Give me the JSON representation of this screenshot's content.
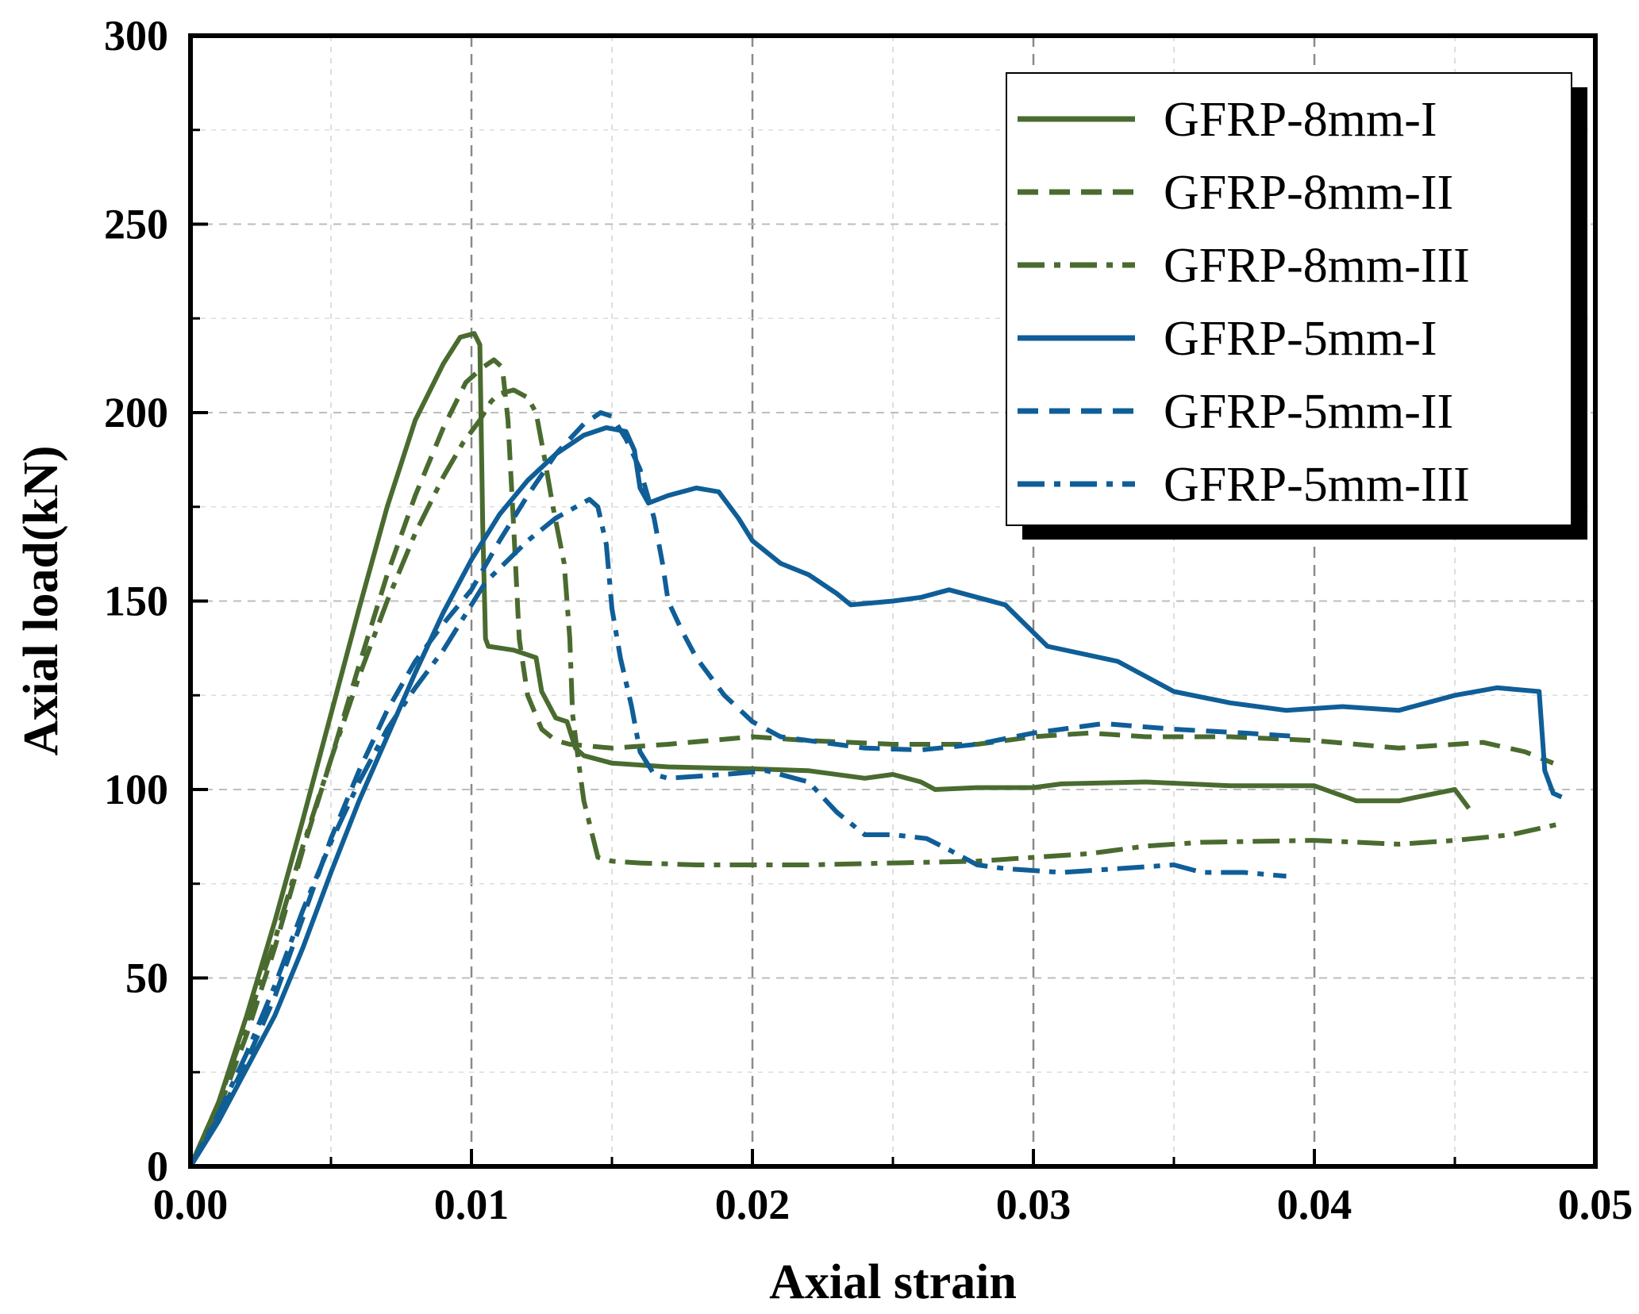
{
  "chart_data": {
    "type": "line",
    "title": "",
    "xlabel": "Axial strain",
    "ylabel": "Axial load(kN)",
    "xlim": [
      0,
      0.05
    ],
    "ylim": [
      0,
      300
    ],
    "x_ticks": [
      0,
      0.01,
      0.02,
      0.03,
      0.04,
      0.05
    ],
    "x_tick_labels": [
      "0.00",
      "0.01",
      "0.02",
      "0.03",
      "0.04",
      "0.05"
    ],
    "y_ticks": [
      0,
      50,
      100,
      150,
      200,
      250,
      300
    ],
    "y_tick_labels": [
      "0",
      "50",
      "100",
      "150",
      "200",
      "250",
      "300"
    ],
    "grid": true,
    "legend_position": "top-right",
    "series": [
      {
        "name": "GFRP-8mm-I",
        "color": "#4a6b2f",
        "dash": "solid",
        "points": [
          [
            0,
            0
          ],
          [
            0.001,
            17
          ],
          [
            0.002,
            40
          ],
          [
            0.003,
            65
          ],
          [
            0.004,
            92
          ],
          [
            0.005,
            120
          ],
          [
            0.006,
            148
          ],
          [
            0.007,
            175
          ],
          [
            0.008,
            198
          ],
          [
            0.009,
            213
          ],
          [
            0.0096,
            220
          ],
          [
            0.0101,
            221
          ],
          [
            0.0103,
            218
          ],
          [
            0.0104,
            170
          ],
          [
            0.0105,
            140
          ],
          [
            0.0106,
            138
          ],
          [
            0.0115,
            137
          ],
          [
            0.0123,
            135
          ],
          [
            0.0125,
            126
          ],
          [
            0.013,
            119
          ],
          [
            0.0134,
            118
          ],
          [
            0.0137,
            111
          ],
          [
            0.014,
            109
          ],
          [
            0.015,
            107
          ],
          [
            0.016,
            106.5
          ],
          [
            0.017,
            106
          ],
          [
            0.02,
            105.5
          ],
          [
            0.022,
            105
          ],
          [
            0.024,
            103
          ],
          [
            0.025,
            104
          ],
          [
            0.026,
            102
          ],
          [
            0.0265,
            100
          ],
          [
            0.028,
            100.5
          ],
          [
            0.03,
            100.5
          ],
          [
            0.031,
            101.5
          ],
          [
            0.034,
            102
          ],
          [
            0.037,
            101
          ],
          [
            0.04,
            101
          ],
          [
            0.0415,
            97
          ],
          [
            0.043,
            97
          ],
          [
            0.045,
            100
          ],
          [
            0.0455,
            95
          ]
        ]
      },
      {
        "name": "GFRP-8mm-II",
        "color": "#4a6b2f",
        "dash": "dashed",
        "points": [
          [
            0,
            0
          ],
          [
            0.001,
            15
          ],
          [
            0.002,
            35
          ],
          [
            0.003,
            58
          ],
          [
            0.004,
            84
          ],
          [
            0.005,
            108
          ],
          [
            0.006,
            133
          ],
          [
            0.007,
            157
          ],
          [
            0.008,
            178
          ],
          [
            0.009,
            196
          ],
          [
            0.0098,
            208
          ],
          [
            0.0104,
            212
          ],
          [
            0.0108,
            214
          ],
          [
            0.0111,
            212
          ],
          [
            0.0113,
            198
          ],
          [
            0.0115,
            170
          ],
          [
            0.0117,
            140
          ],
          [
            0.012,
            125
          ],
          [
            0.0125,
            116
          ],
          [
            0.013,
            113
          ],
          [
            0.0135,
            112
          ],
          [
            0.015,
            111
          ],
          [
            0.017,
            112
          ],
          [
            0.02,
            114
          ],
          [
            0.022,
            113
          ],
          [
            0.025,
            112
          ],
          [
            0.028,
            112
          ],
          [
            0.03,
            114
          ],
          [
            0.032,
            115
          ],
          [
            0.034,
            114
          ],
          [
            0.037,
            114
          ],
          [
            0.04,
            113
          ],
          [
            0.043,
            111
          ],
          [
            0.046,
            112.5
          ],
          [
            0.0475,
            110
          ],
          [
            0.0485,
            107
          ]
        ]
      },
      {
        "name": "GFRP-8mm-III",
        "color": "#4a6b2f",
        "dash": "dashdot",
        "points": [
          [
            0,
            0
          ],
          [
            0.001,
            17
          ],
          [
            0.002,
            38
          ],
          [
            0.003,
            60
          ],
          [
            0.004,
            85
          ],
          [
            0.005,
            108
          ],
          [
            0.006,
            130
          ],
          [
            0.007,
            150
          ],
          [
            0.008,
            168
          ],
          [
            0.009,
            183
          ],
          [
            0.0097,
            192
          ],
          [
            0.0103,
            198
          ],
          [
            0.0107,
            203
          ],
          [
            0.011,
            205
          ],
          [
            0.0115,
            206
          ],
          [
            0.012,
            204
          ],
          [
            0.0123,
            200
          ],
          [
            0.0126,
            188
          ],
          [
            0.0129,
            175
          ],
          [
            0.0133,
            160
          ],
          [
            0.0135,
            140
          ],
          [
            0.0136,
            120
          ],
          [
            0.0138,
            108
          ],
          [
            0.014,
            97
          ],
          [
            0.0143,
            88
          ],
          [
            0.0145,
            82
          ],
          [
            0.015,
            81
          ],
          [
            0.016,
            80.5
          ],
          [
            0.018,
            80
          ],
          [
            0.02,
            80
          ],
          [
            0.022,
            80
          ],
          [
            0.025,
            80.5
          ],
          [
            0.028,
            81
          ],
          [
            0.03,
            82
          ],
          [
            0.032,
            83
          ],
          [
            0.034,
            85
          ],
          [
            0.036,
            86
          ],
          [
            0.04,
            86.5
          ],
          [
            0.043,
            85.5
          ],
          [
            0.045,
            86.5
          ],
          [
            0.047,
            88
          ],
          [
            0.0488,
            91
          ]
        ]
      },
      {
        "name": "GFRP-5mm-I",
        "color": "#0f5e97",
        "dash": "solid",
        "points": [
          [
            0,
            0
          ],
          [
            0.001,
            12
          ],
          [
            0.002,
            26
          ],
          [
            0.003,
            40
          ],
          [
            0.004,
            58
          ],
          [
            0.005,
            78
          ],
          [
            0.006,
            97
          ],
          [
            0.007,
            114
          ],
          [
            0.008,
            131
          ],
          [
            0.009,
            147
          ],
          [
            0.01,
            161
          ],
          [
            0.011,
            173
          ],
          [
            0.012,
            182
          ],
          [
            0.013,
            189
          ],
          [
            0.014,
            194
          ],
          [
            0.0148,
            196
          ],
          [
            0.0155,
            195
          ],
          [
            0.0158,
            190
          ],
          [
            0.016,
            180
          ],
          [
            0.0163,
            176
          ],
          [
            0.017,
            178
          ],
          [
            0.018,
            180
          ],
          [
            0.0188,
            179
          ],
          [
            0.0195,
            172
          ],
          [
            0.02,
            166
          ],
          [
            0.021,
            160
          ],
          [
            0.022,
            157
          ],
          [
            0.023,
            152
          ],
          [
            0.0235,
            149
          ],
          [
            0.025,
            150
          ],
          [
            0.026,
            151
          ],
          [
            0.027,
            153
          ],
          [
            0.028,
            151
          ],
          [
            0.029,
            149
          ],
          [
            0.0305,
            138
          ],
          [
            0.033,
            134
          ],
          [
            0.035,
            126
          ],
          [
            0.037,
            123
          ],
          [
            0.039,
            121
          ],
          [
            0.041,
            122
          ],
          [
            0.043,
            121
          ],
          [
            0.045,
            125
          ],
          [
            0.0465,
            127
          ],
          [
            0.048,
            126
          ],
          [
            0.0482,
            105
          ],
          [
            0.0485,
            99
          ],
          [
            0.0488,
            98
          ]
        ]
      },
      {
        "name": "GFRP-5mm-II",
        "color": "#0f5e97",
        "dash": "dashed",
        "points": [
          [
            0,
            0
          ],
          [
            0.001,
            13
          ],
          [
            0.002,
            28
          ],
          [
            0.003,
            45
          ],
          [
            0.004,
            66
          ],
          [
            0.005,
            87
          ],
          [
            0.006,
            105
          ],
          [
            0.007,
            121
          ],
          [
            0.008,
            134
          ],
          [
            0.009,
            144
          ],
          [
            0.01,
            153
          ],
          [
            0.011,
            166
          ],
          [
            0.012,
            178
          ],
          [
            0.013,
            189
          ],
          [
            0.014,
            197
          ],
          [
            0.0146,
            200
          ],
          [
            0.015,
            199
          ],
          [
            0.0155,
            193
          ],
          [
            0.016,
            185
          ],
          [
            0.0165,
            172
          ],
          [
            0.0168,
            160
          ],
          [
            0.017,
            150
          ],
          [
            0.0175,
            142
          ],
          [
            0.018,
            135
          ],
          [
            0.019,
            125
          ],
          [
            0.02,
            118
          ],
          [
            0.021,
            114
          ],
          [
            0.022,
            113
          ],
          [
            0.024,
            111
          ],
          [
            0.026,
            110.5
          ],
          [
            0.028,
            112
          ],
          [
            0.03,
            115
          ],
          [
            0.0325,
            117.5
          ],
          [
            0.035,
            116
          ],
          [
            0.0375,
            115
          ],
          [
            0.0395,
            114
          ]
        ]
      },
      {
        "name": "GFRP-5mm-III",
        "color": "#0f5e97",
        "dash": "dashdot",
        "points": [
          [
            0,
            0
          ],
          [
            0.001,
            14
          ],
          [
            0.002,
            30
          ],
          [
            0.003,
            48
          ],
          [
            0.004,
            68
          ],
          [
            0.005,
            86
          ],
          [
            0.006,
            102
          ],
          [
            0.007,
            116
          ],
          [
            0.008,
            127
          ],
          [
            0.009,
            137
          ],
          [
            0.0105,
            155
          ],
          [
            0.012,
            166
          ],
          [
            0.013,
            172
          ],
          [
            0.0142,
            177
          ],
          [
            0.0145,
            175
          ],
          [
            0.0148,
            165
          ],
          [
            0.015,
            148
          ],
          [
            0.0153,
            135
          ],
          [
            0.0157,
            122
          ],
          [
            0.016,
            110
          ],
          [
            0.0165,
            104
          ],
          [
            0.017,
            103
          ],
          [
            0.019,
            104
          ],
          [
            0.0205,
            105
          ],
          [
            0.022,
            102
          ],
          [
            0.023,
            94
          ],
          [
            0.024,
            88
          ],
          [
            0.025,
            88
          ],
          [
            0.0262,
            87
          ],
          [
            0.027,
            84
          ],
          [
            0.028,
            80
          ],
          [
            0.029,
            79
          ],
          [
            0.031,
            78
          ],
          [
            0.033,
            79
          ],
          [
            0.035,
            80
          ],
          [
            0.036,
            78
          ],
          [
            0.0375,
            78
          ],
          [
            0.039,
            77
          ]
        ]
      }
    ]
  }
}
